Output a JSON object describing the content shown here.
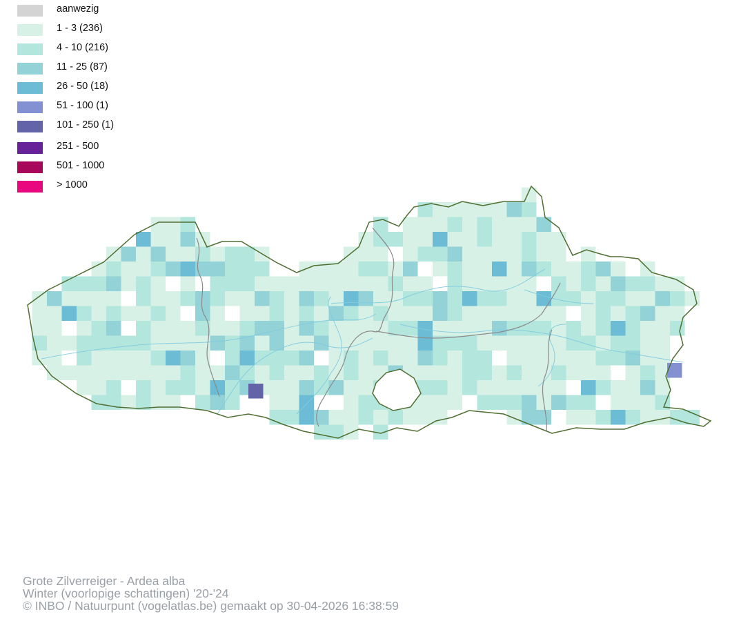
{
  "legend": {
    "items": [
      {
        "label": "aanwezig",
        "color": "#d4d4d4"
      },
      {
        "label": "1 - 3 (236)",
        "color": "#d8f1e6"
      },
      {
        "label": "4 - 10 (216)",
        "color": "#b3e6dd"
      },
      {
        "label": "11 - 25 (87)",
        "color": "#93d3d7"
      },
      {
        "label": "26 - 50 (18)",
        "color": "#6bbcd4"
      },
      {
        "label": "51 - 100 (1)",
        "color": "#8391d2"
      },
      {
        "label": "101 - 250 (1)",
        "color": "#6264a7"
      },
      {
        "label": "251 - 500",
        "color": "#682299"
      },
      {
        "label": "501 - 1000",
        "color": "#a8085a"
      },
      {
        "label": "> 1000",
        "color": "#e8077e"
      }
    ]
  },
  "map": {
    "region": "Vlaanderen",
    "border_color": "#4e6e32",
    "province_border_color": "#8a8a8a",
    "river_color": "#7fcbe0"
  },
  "caption": {
    "species": "Grote Zilverreiger - Ardea alba",
    "period": "Winter (voorlopige schattingen) '20-'24",
    "credit": "© INBO / Natuurpunt (vogelatlas.be) gemaakt op 30-04-2026 16:38:59"
  }
}
